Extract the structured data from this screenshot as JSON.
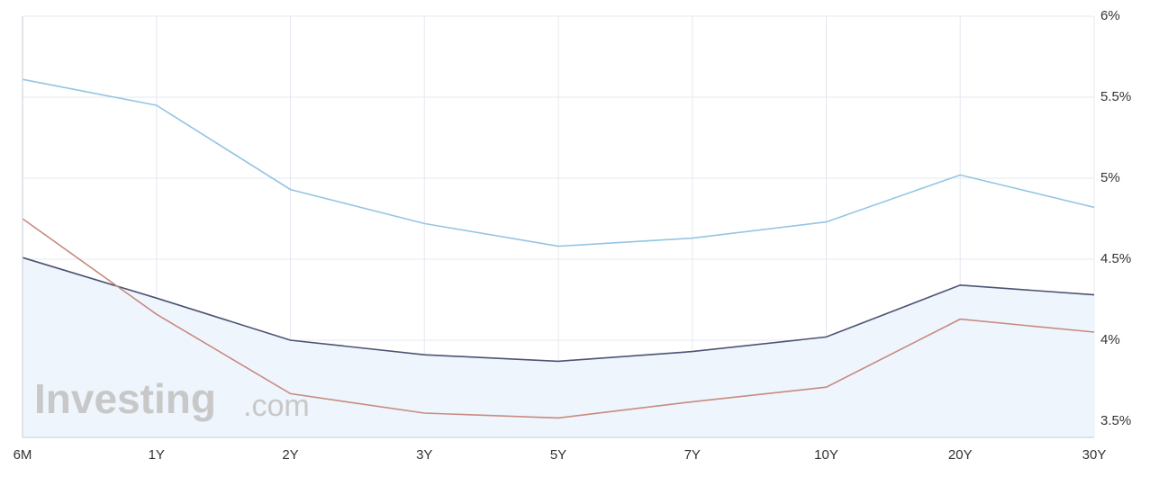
{
  "chart_data": {
    "type": "line",
    "categories": [
      "6M",
      "1Y",
      "2Y",
      "3Y",
      "5Y",
      "7Y",
      "10Y",
      "20Y",
      "30Y"
    ],
    "series": [
      {
        "color": "#93c5e3",
        "values": [
          5.61,
          5.45,
          4.93,
          4.72,
          4.58,
          4.63,
          4.73,
          5.02,
          4.82
        ]
      },
      {
        "color": "#4c5272",
        "fill": "#eef5fc",
        "values": [
          4.51,
          4.26,
          4.0,
          3.91,
          3.87,
          3.93,
          4.02,
          4.34,
          4.28
        ]
      },
      {
        "color": "#c88a80",
        "values": [
          4.75,
          4.16,
          3.67,
          3.55,
          3.52,
          3.62,
          3.71,
          4.13,
          4.05
        ]
      }
    ],
    "ylim": [
      3.4,
      6
    ],
    "yticks": [
      {
        "value": 3.5,
        "label": "3.5%"
      },
      {
        "value": 4,
        "label": "4%"
      },
      {
        "value": 4.5,
        "label": "4.5%"
      },
      {
        "value": 5,
        "label": "5%"
      },
      {
        "value": 5.5,
        "label": "5.5%"
      },
      {
        "value": 6,
        "label": "6%"
      }
    ],
    "grid": true,
    "watermark": {
      "brand": "Investing",
      "suffix": ".com"
    }
  }
}
